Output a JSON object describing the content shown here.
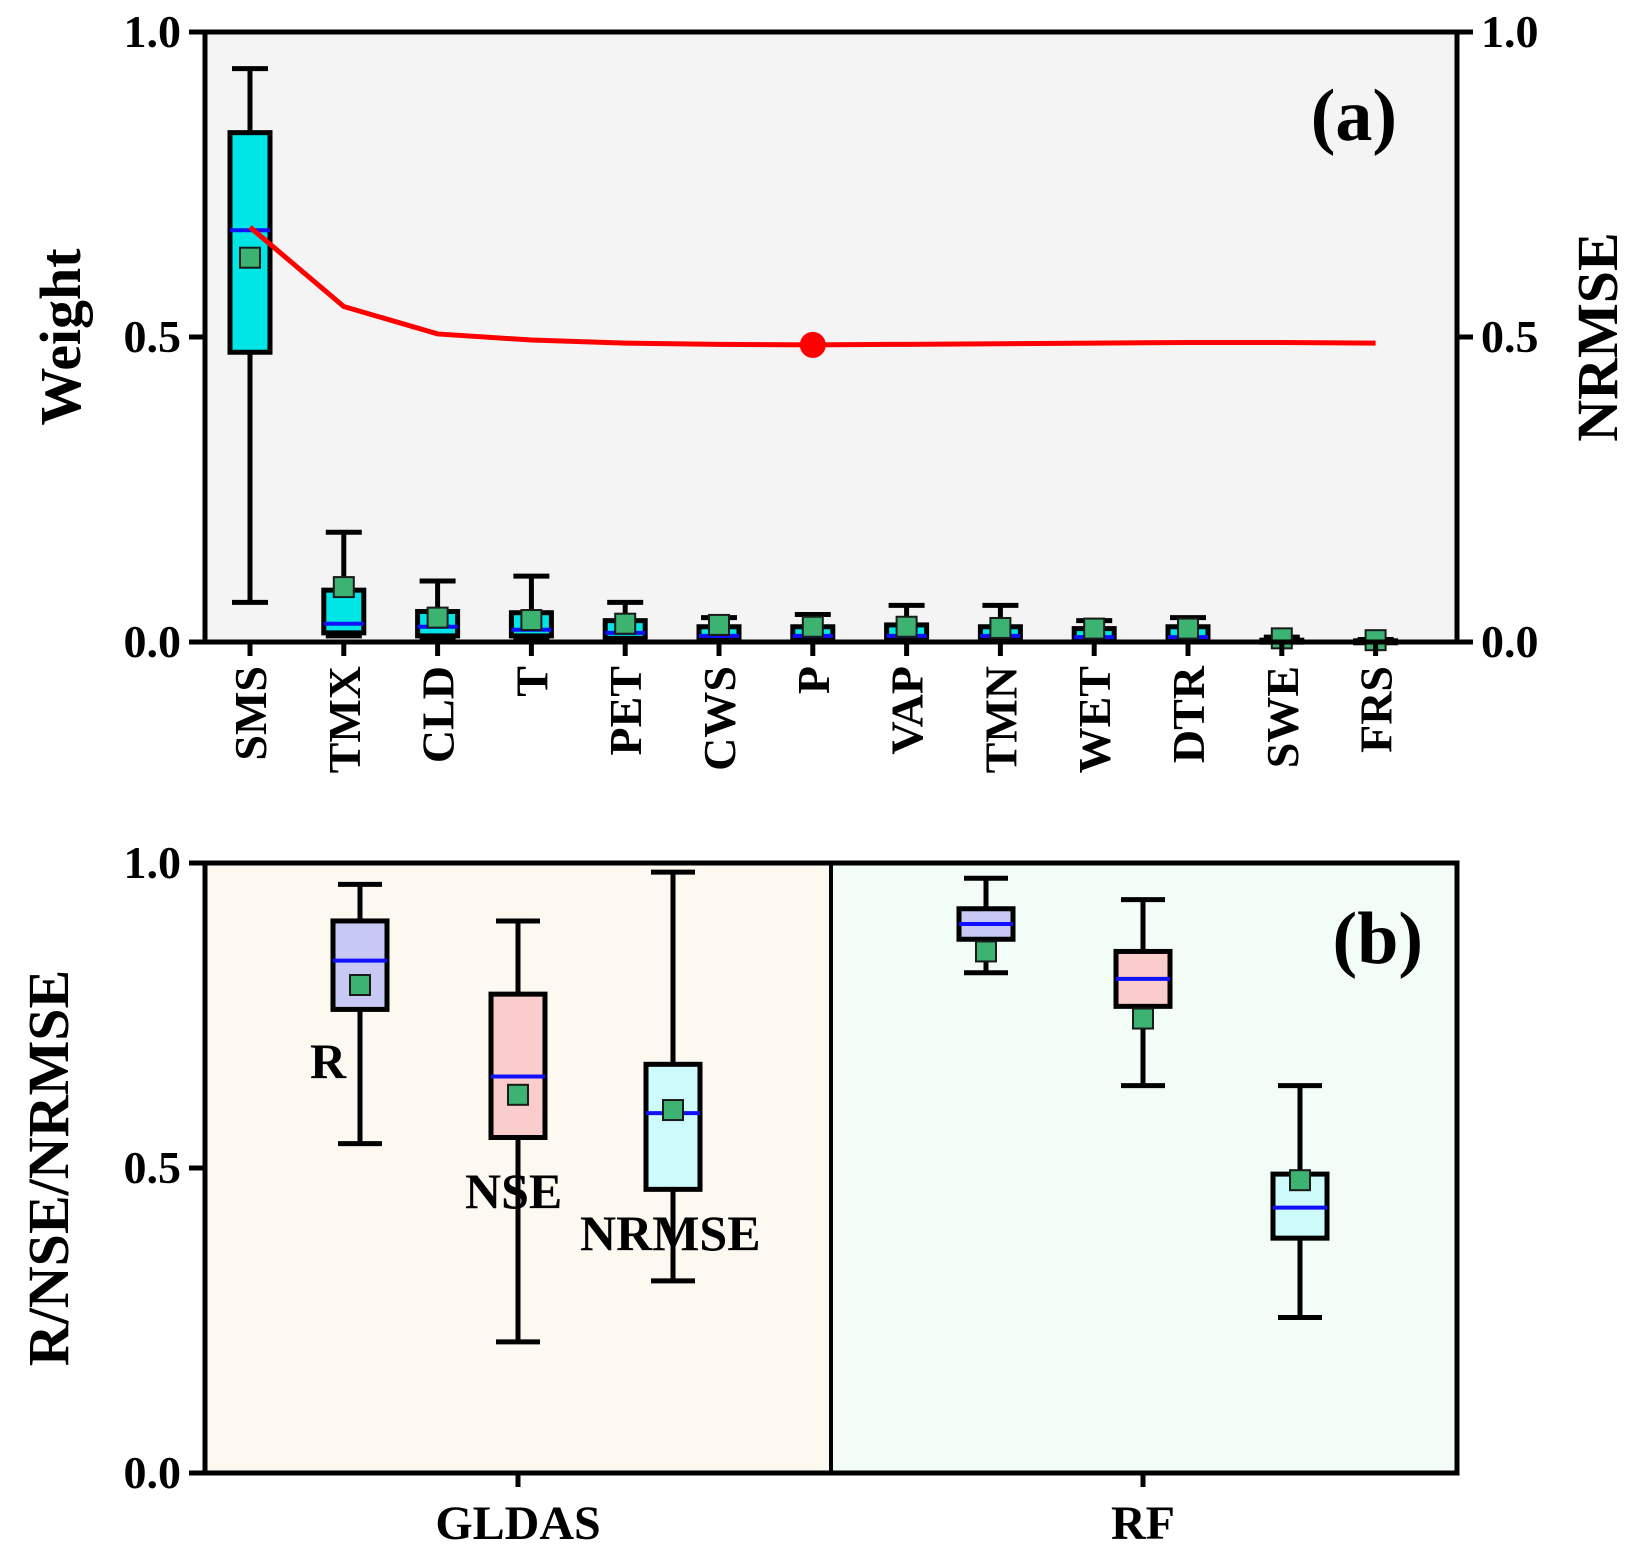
{
  "chart_data": [
    {
      "panel": "(a)",
      "type": "box+line",
      "ylabel": "Weight",
      "y2label": "NRMSE",
      "ylim": [
        0,
        1
      ],
      "y2lim": [
        0,
        1
      ],
      "ytick_labels": [
        "0.0",
        "0.5",
        "1.0"
      ],
      "y2tick_labels": [
        "0.0",
        "0.5",
        "1.0"
      ],
      "categories": [
        "SMS",
        "TMX",
        "CLD",
        "T",
        "PET",
        "CWS",
        "P",
        "VAP",
        "TMN",
        "WET",
        "DTR",
        "SWE",
        "FRS"
      ],
      "boxes": [
        {
          "whisker_low": 0.065,
          "q1": 0.475,
          "median": 0.675,
          "q3": 0.835,
          "whisker_high": 0.94,
          "mean": 0.63
        },
        {
          "whisker_low": 0.01,
          "q1": 0.015,
          "median": 0.03,
          "q3": 0.085,
          "whisker_high": 0.18,
          "mean": 0.09
        },
        {
          "whisker_low": 0.005,
          "q1": 0.01,
          "median": 0.025,
          "q3": 0.05,
          "whisker_high": 0.1,
          "mean": 0.04
        },
        {
          "whisker_low": 0.005,
          "q1": 0.01,
          "median": 0.02,
          "q3": 0.048,
          "whisker_high": 0.108,
          "mean": 0.036
        },
        {
          "whisker_low": 0.003,
          "q1": 0.006,
          "median": 0.015,
          "q3": 0.035,
          "whisker_high": 0.065,
          "mean": 0.03
        },
        {
          "whisker_low": 0.002,
          "q1": 0.004,
          "median": 0.01,
          "q3": 0.025,
          "whisker_high": 0.04,
          "mean": 0.028
        },
        {
          "whisker_low": 0.002,
          "q1": 0.004,
          "median": 0.01,
          "q3": 0.025,
          "whisker_high": 0.045,
          "mean": 0.025
        },
        {
          "whisker_low": 0.002,
          "q1": 0.004,
          "median": 0.01,
          "q3": 0.028,
          "whisker_high": 0.06,
          "mean": 0.025
        },
        {
          "whisker_low": 0.002,
          "q1": 0.004,
          "median": 0.01,
          "q3": 0.025,
          "whisker_high": 0.06,
          "mean": 0.023
        },
        {
          "whisker_low": 0.002,
          "q1": 0.003,
          "median": 0.008,
          "q3": 0.022,
          "whisker_high": 0.035,
          "mean": 0.022
        },
        {
          "whisker_low": 0.002,
          "q1": 0.003,
          "median": 0.008,
          "q3": 0.025,
          "whisker_high": 0.04,
          "mean": 0.022
        },
        {
          "whisker_low": 0.0,
          "q1": 0.0,
          "median": 0.0,
          "q3": 0.003,
          "whisker_high": 0.008,
          "mean": 0.006
        },
        {
          "whisker_low": 0.0,
          "q1": 0.0,
          "median": 0.0,
          "q3": 0.002,
          "whisker_high": 0.004,
          "mean": 0.003
        }
      ],
      "nrmse_line": [
        0.68,
        0.55,
        0.505,
        0.495,
        0.49,
        0.488,
        0.487,
        0.488,
        0.489,
        0.49,
        0.491,
        0.491,
        0.49
      ],
      "highlight_point": {
        "category": "P",
        "value": 0.487
      },
      "colors": {
        "box_fill": "#00e5e5",
        "median": "#1010ff",
        "mean": "#3cb371",
        "line": "#ff0000",
        "background": "#f4f4f4"
      }
    },
    {
      "panel": "(b)",
      "type": "box",
      "ylabel": "R/NSE/NRMSE",
      "ylim": [
        0,
        1
      ],
      "ytick_labels": [
        "0.0",
        "0.5",
        "1.0"
      ],
      "groups": [
        "GLDAS",
        "RF"
      ],
      "series_labels": [
        "R",
        "NSE",
        "NRMSE"
      ],
      "boxes": [
        {
          "group": "GLDAS",
          "metric": "R",
          "whisker_low": 0.54,
          "q1": 0.76,
          "median": 0.84,
          "q3": 0.905,
          "whisker_high": 0.965,
          "mean": 0.8,
          "fill": "#c8c8f5"
        },
        {
          "group": "GLDAS",
          "metric": "NSE",
          "whisker_low": 0.215,
          "q1": 0.55,
          "median": 0.65,
          "q3": 0.785,
          "whisker_high": 0.905,
          "mean": 0.62,
          "fill": "#fbcccc"
        },
        {
          "group": "GLDAS",
          "metric": "NRMSE",
          "whisker_low": 0.315,
          "q1": 0.465,
          "median": 0.59,
          "q3": 0.67,
          "whisker_high": 0.985,
          "mean": 0.595,
          "fill": "#cdfafa"
        },
        {
          "group": "RF",
          "metric": "R",
          "whisker_low": 0.82,
          "q1": 0.875,
          "median": 0.9,
          "q3": 0.925,
          "whisker_high": 0.975,
          "mean": 0.855,
          "fill": "#c8c8f5"
        },
        {
          "group": "RF",
          "metric": "NSE",
          "whisker_low": 0.635,
          "q1": 0.765,
          "median": 0.81,
          "q3": 0.855,
          "whisker_high": 0.94,
          "mean": 0.745,
          "fill": "#fbcccc"
        },
        {
          "group": "RF",
          "metric": "NRMSE",
          "whisker_low": 0.255,
          "q1": 0.385,
          "median": 0.435,
          "q3": 0.49,
          "whisker_high": 0.635,
          "mean": 0.48,
          "fill": "#cdfafa"
        }
      ],
      "colors": {
        "gldas_background": "#fdf8f0",
        "rf_background": "#f2fdf7",
        "median": "#1010ff",
        "mean": "#3cb371"
      }
    }
  ]
}
